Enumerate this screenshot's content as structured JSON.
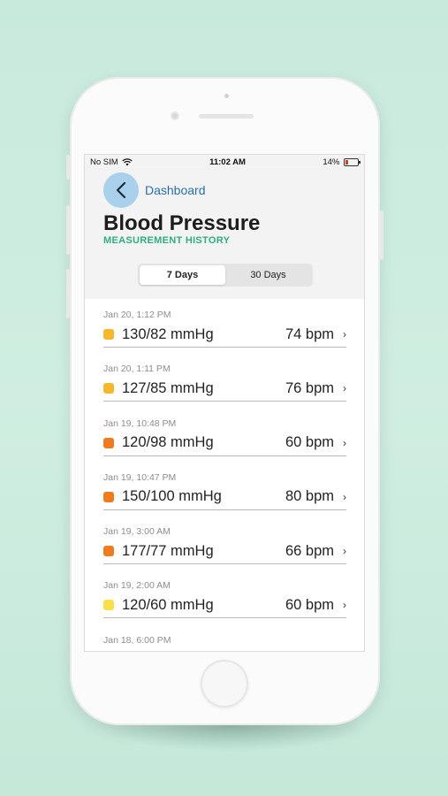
{
  "status_bar": {
    "carrier": "No SIM",
    "time": "11:02 AM",
    "battery": "14%"
  },
  "nav": {
    "back_label": "Dashboard"
  },
  "page": {
    "title": "Blood Pressure",
    "subtitle": "MEASUREMENT HISTORY"
  },
  "tabs": [
    {
      "label": "7 Days",
      "active": true
    },
    {
      "label": "30 Days",
      "active": false
    }
  ],
  "measurements": [
    {
      "date": "Jan 20, 1:12 PM",
      "reading": "130/82 mmHg",
      "pulse": "74 bpm",
      "color": "#f5b82a"
    },
    {
      "date": "Jan 20, 1:11 PM",
      "reading": "127/85 mmHg",
      "pulse": "76 bpm",
      "color": "#f5b82a"
    },
    {
      "date": "Jan 19, 10:48 PM",
      "reading": "120/98 mmHg",
      "pulse": "60 bpm",
      "color": "#f07a1e"
    },
    {
      "date": "Jan 19, 10:47 PM",
      "reading": "150/100 mmHg",
      "pulse": "80 bpm",
      "color": "#f07a1e"
    },
    {
      "date": "Jan 19, 3:00 AM",
      "reading": "177/77 mmHg",
      "pulse": "66 bpm",
      "color": "#f07a1e"
    },
    {
      "date": "Jan 19, 2:00 AM",
      "reading": "120/60 mmHg",
      "pulse": "60 bpm",
      "color": "#f7e04a"
    }
  ],
  "partial_last_date": "Jan 18, 6:00 PM",
  "icons": {
    "wifi": "wifi-icon",
    "battery": "battery-charging-icon",
    "back": "chevron-left-icon",
    "row_chevron": "chevron-right-icon"
  }
}
